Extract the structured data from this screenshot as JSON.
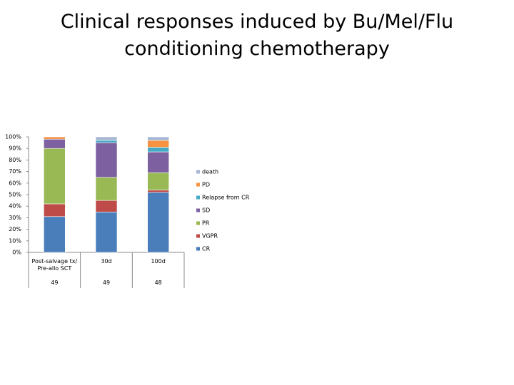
{
  "chart_data": {
    "type": "stacked-bar",
    "title": "Clinical responses induced by Bu/Mel/Flu conditioning chemotherapy",
    "categories": [
      "Post-salvage tx/ Pre-allo SCT",
      "30d",
      "100d"
    ],
    "n": [
      "49",
      "49",
      "48"
    ],
    "series": [
      {
        "name": "CR",
        "color": "#4a7ebb",
        "values": [
          31,
          35,
          52
        ]
      },
      {
        "name": "VGPR",
        "color": "#be4b48",
        "values": [
          11,
          10,
          2
        ]
      },
      {
        "name": "PR",
        "color": "#98b954",
        "values": [
          48,
          20,
          15
        ]
      },
      {
        "name": "SD",
        "color": "#7d60a0",
        "values": [
          8,
          30,
          18
        ]
      },
      {
        "name": "Relapse from CR",
        "color": "#46aac5",
        "values": [
          0,
          2,
          4
        ]
      },
      {
        "name": "PD",
        "color": "#f69240",
        "values": [
          2,
          0,
          6
        ]
      },
      {
        "name": "death",
        "color": "#a5b6d3",
        "values": [
          0,
          3,
          3
        ]
      }
    ],
    "ylim": [
      0,
      100
    ],
    "yticks": [
      {
        "value": 0,
        "label": "0%"
      },
      {
        "value": 10,
        "label": "10%"
      },
      {
        "value": 20,
        "label": "20%"
      },
      {
        "value": 30,
        "label": "30%"
      },
      {
        "value": 40,
        "label": "40%"
      },
      {
        "value": 50,
        "label": "50%"
      },
      {
        "value": 60,
        "label": "60%"
      },
      {
        "value": 70,
        "label": "70%"
      },
      {
        "value": 80,
        "label": "80%"
      },
      {
        "value": 90,
        "label": "90%"
      },
      {
        "value": 100,
        "label": "100%"
      }
    ],
    "legend": "right"
  }
}
